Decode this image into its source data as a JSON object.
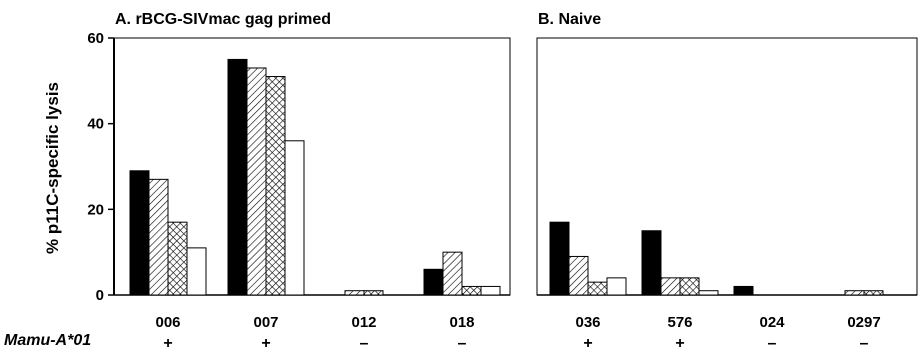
{
  "figure": {
    "ylabel": "% p11C-specific lysis",
    "row_label": "Mamu-A*01"
  },
  "chart_data": [
    {
      "type": "bar",
      "title": "A. rBCG-SIVmac gag primed",
      "ylabel": "% p11C-specific lysis",
      "ylim": [
        0,
        60
      ],
      "yticks": [
        0,
        20,
        40,
        60
      ],
      "categories": [
        "006",
        "007",
        "012",
        "018"
      ],
      "genotype": [
        "+",
        "+",
        "–",
        "–"
      ],
      "series": [
        {
          "pattern": "solid black",
          "values": [
            29,
            55,
            0,
            6
          ]
        },
        {
          "pattern": "diagonal hatch",
          "values": [
            27,
            53,
            1,
            10
          ]
        },
        {
          "pattern": "crosshatch",
          "values": [
            17,
            51,
            1,
            2
          ]
        },
        {
          "pattern": "white",
          "values": [
            11,
            36,
            0,
            2
          ]
        }
      ],
      "grid": false
    },
    {
      "type": "bar",
      "title": "B. Naive",
      "ylim": [
        0,
        60
      ],
      "categories": [
        "036",
        "576",
        "024",
        "0297"
      ],
      "genotype": [
        "+",
        "+",
        "–",
        "–"
      ],
      "series": [
        {
          "pattern": "solid black",
          "values": [
            17,
            15,
            2,
            0
          ]
        },
        {
          "pattern": "diagonal hatch",
          "values": [
            9,
            4,
            0,
            1
          ]
        },
        {
          "pattern": "crosshatch",
          "values": [
            3,
            4,
            0,
            1
          ]
        },
        {
          "pattern": "white",
          "values": [
            4,
            1,
            0,
            0
          ]
        }
      ],
      "grid": false
    }
  ]
}
